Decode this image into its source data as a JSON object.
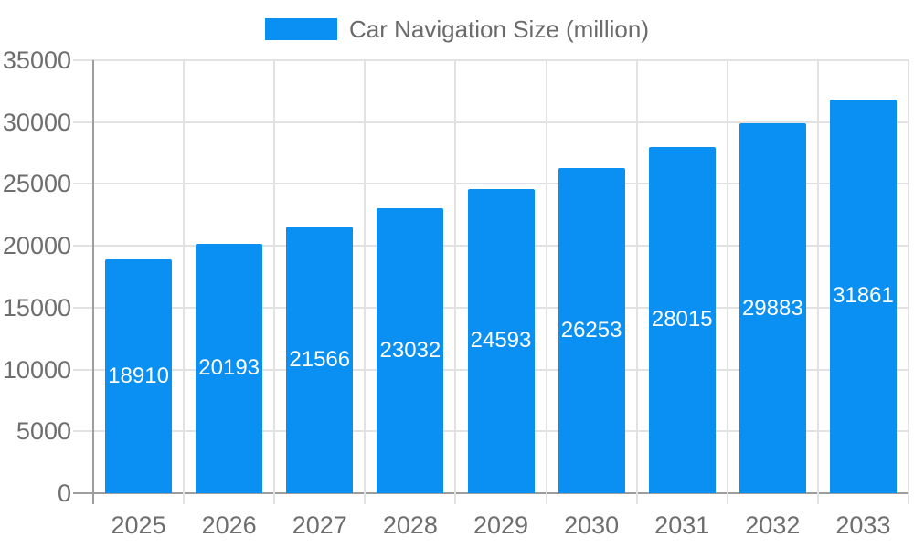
{
  "chart_data": {
    "type": "bar",
    "title": "Car Navigation Size (million)",
    "categories": [
      "2025",
      "2026",
      "2027",
      "2028",
      "2029",
      "2030",
      "2031",
      "2032",
      "2033"
    ],
    "series": [
      {
        "name": "Car Navigation Size (million)",
        "values": [
          18910,
          20193,
          21566,
          23032,
          24593,
          26253,
          28015,
          29883,
          31861
        ]
      }
    ],
    "value_labels_shown": true,
    "xlabel": "",
    "ylabel": "",
    "ylim": [
      0,
      35000
    ],
    "yticks": [
      0,
      5000,
      10000,
      15000,
      20000,
      25000,
      30000,
      35000
    ],
    "grid": true,
    "legend_position": "top-center",
    "colors": {
      "bar": "#0a90f2",
      "bar_value_text": "#ffffff",
      "axis_text": "#6e6e6e",
      "grid_line": "#e2e2e2",
      "axis_line": "#9e9e9e",
      "background": "#ffffff"
    }
  }
}
